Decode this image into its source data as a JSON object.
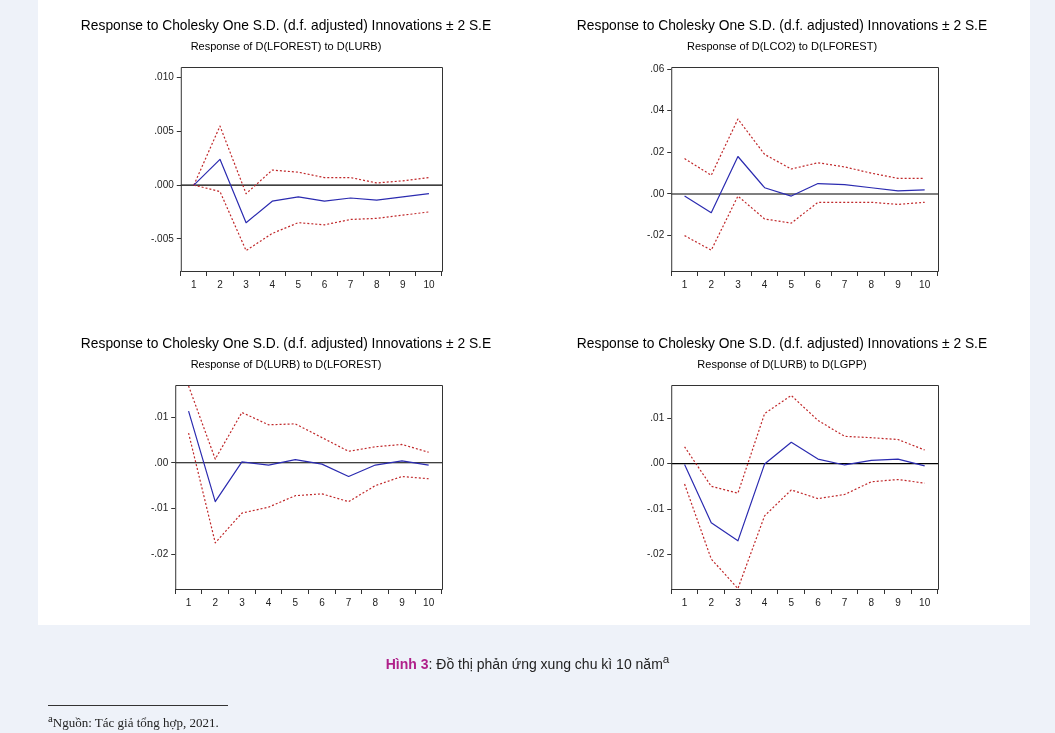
{
  "chart_data": [
    {
      "type": "line",
      "title": "Response to Cholesky One S.D. (d.f. adjusted) Innovations ± 2 S.E",
      "subtitle": "Response of D(LFOREST) to D(LURB)",
      "categories": [
        "1",
        "2",
        "3",
        "4",
        "5",
        "6",
        "7",
        "8",
        "9",
        "10"
      ],
      "series": [
        {
          "color": "#2b2bb0",
          "line_style": "solid",
          "values": [
            0,
            0.0024,
            -0.0035,
            -0.0015,
            -0.0011,
            -0.0015,
            -0.0012,
            -0.0014,
            -0.0011,
            -0.0008
          ]
        },
        {
          "color": "#c0282a",
          "line_style": "dashed",
          "values": [
            0,
            0.0055,
            -0.0008,
            0.0014,
            0.0012,
            0.0007,
            0.0007,
            0.0002,
            0.0004,
            0.0007
          ]
        },
        {
          "color": "#c0282a",
          "line_style": "dashed",
          "values": [
            0,
            -0.0006,
            -0.0061,
            -0.0045,
            -0.0035,
            -0.0037,
            -0.0032,
            -0.0031,
            -0.0028,
            -0.0025
          ]
        }
      ],
      "ylim": [
        -0.008,
        0.011
      ],
      "yticks": [
        {
          "value": -0.005,
          "label": "-.005"
        },
        {
          "value": 0,
          "label": ".000"
        },
        {
          "value": 0.005,
          "label": ".005"
        },
        {
          "value": 0.01,
          "label": ".010"
        }
      ],
      "ref_lines": [
        {
          "axis": "y",
          "value": 0,
          "color": "#000000"
        }
      ],
      "grid": false,
      "legend": false,
      "marker": "none"
    },
    {
      "type": "line",
      "title": "Response to Cholesky One S.D. (d.f. adjusted) Innovations ± 2 S.E",
      "subtitle": "Response of D(LCO2) to D(LFOREST)",
      "categories": [
        "1",
        "2",
        "3",
        "4",
        "5",
        "6",
        "7",
        "8",
        "9",
        "10"
      ],
      "series": [
        {
          "color": "#2b2bb0",
          "line_style": "solid",
          "values": [
            -0.001,
            -0.009,
            0.018,
            0.003,
            -0.001,
            0.005,
            0.0045,
            0.003,
            0.0015,
            0.002
          ]
        },
        {
          "color": "#c0282a",
          "line_style": "dashed",
          "values": [
            0.017,
            0.009,
            0.036,
            0.019,
            0.012,
            0.015,
            0.013,
            0.01,
            0.0075,
            0.0075
          ]
        },
        {
          "color": "#c0282a",
          "line_style": "dashed",
          "values": [
            -0.02,
            -0.027,
            -0.001,
            -0.012,
            -0.014,
            -0.004,
            -0.004,
            -0.004,
            -0.005,
            -0.004
          ]
        }
      ],
      "ylim": [
        -0.037,
        0.061
      ],
      "yticks": [
        {
          "value": -0.02,
          "label": "-.02"
        },
        {
          "value": 0,
          "label": ".00"
        },
        {
          "value": 0.02,
          "label": ".02"
        },
        {
          "value": 0.04,
          "label": ".04"
        },
        {
          "value": 0.06,
          "label": ".06"
        }
      ],
      "ref_lines": [
        {
          "axis": "y",
          "value": 0,
          "color": "#000000"
        }
      ],
      "grid": false,
      "legend": false,
      "marker": "none"
    },
    {
      "type": "line",
      "title": "Response to Cholesky One S.D. (d.f. adjusted) Innovations ± 2 S.E",
      "subtitle": "Response of D(LURB) to D(LFOREST)",
      "categories": [
        "1",
        "2",
        "3",
        "4",
        "5",
        "6",
        "7",
        "8",
        "9",
        "10"
      ],
      "series": [
        {
          "color": "#2b2bb0",
          "line_style": "solid",
          "values": [
            0.0113,
            -0.0085,
            0.0002,
            -0.0005,
            0.0007,
            -0.0003,
            -0.003,
            -0.0005,
            0.0004,
            -0.0005
          ]
        },
        {
          "color": "#c0282a",
          "line_style": "dashed",
          "values": [
            0.0168,
            0.0008,
            0.011,
            0.0083,
            0.0085,
            0.0055,
            0.0025,
            0.0035,
            0.004,
            0.0023
          ]
        },
        {
          "color": "#c0282a",
          "line_style": "dashed",
          "values": [
            0.0065,
            -0.0175,
            -0.011,
            -0.0097,
            -0.0072,
            -0.0068,
            -0.0085,
            -0.005,
            -0.003,
            -0.0035
          ]
        }
      ],
      "ylim": [
        -0.0276,
        0.017
      ],
      "yticks": [
        {
          "value": -0.02,
          "label": "-.02"
        },
        {
          "value": -0.01,
          "label": "-.01"
        },
        {
          "value": 0,
          "label": ".00"
        },
        {
          "value": 0.01,
          "label": ".01"
        }
      ],
      "ref_lines": [
        {
          "axis": "y",
          "value": 0,
          "color": "#000000"
        }
      ],
      "grid": false,
      "legend": false,
      "marker": "none"
    },
    {
      "type": "line",
      "title": "Response to Cholesky One S.D. (d.f. adjusted) Innovations ± 2 S.E",
      "subtitle": "Response of D(LURB) to D(LGPP)",
      "categories": [
        "1",
        "2",
        "3",
        "4",
        "5",
        "6",
        "7",
        "8",
        "9",
        "10"
      ],
      "series": [
        {
          "color": "#2b2bb0",
          "line_style": "solid",
          "values": [
            -0.0002,
            -0.013,
            -0.017,
            -0.0001,
            0.0047,
            0.001,
            -0.0003,
            0.0007,
            0.001,
            -0.0005
          ]
        },
        {
          "color": "#c0282a",
          "line_style": "dashed",
          "values": [
            0.0037,
            -0.005,
            -0.0065,
            0.011,
            0.015,
            0.0095,
            0.006,
            0.0057,
            0.0053,
            0.003
          ]
        },
        {
          "color": "#c0282a",
          "line_style": "dashed",
          "values": [
            -0.0045,
            -0.021,
            -0.0275,
            -0.0115,
            -0.0058,
            -0.0077,
            -0.0068,
            -0.004,
            -0.0035,
            -0.0043
          ]
        }
      ],
      "ylim": [
        -0.0276,
        0.0173
      ],
      "yticks": [
        {
          "value": -0.02,
          "label": "-.02"
        },
        {
          "value": -0.01,
          "label": "-.01"
        },
        {
          "value": 0,
          "label": ".00"
        },
        {
          "value": 0.01,
          "label": ".01"
        }
      ],
      "ref_lines": [
        {
          "axis": "y",
          "value": 0,
          "color": "#000000"
        }
      ],
      "grid": false,
      "legend": false,
      "marker": "none",
      "annotations": [
        "Hình 3: Đồ thị phản ứng xung chu kì 10 năm$^{a}$",
        "$^{a}$Nguồn: Tác giả tổng hợp, 2021."
      ]
    }
  ]
}
